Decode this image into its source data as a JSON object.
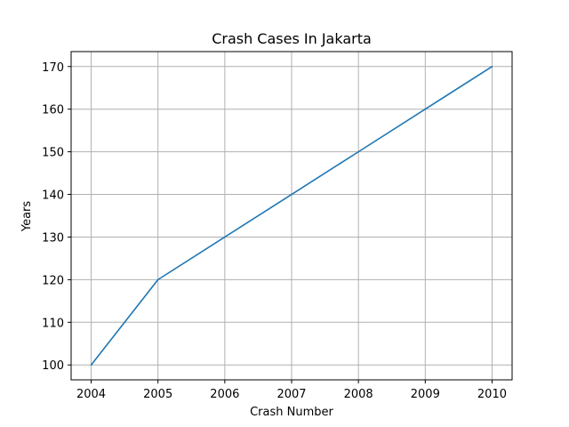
{
  "chart_data": {
    "type": "line",
    "title": "Crash Cases In Jakarta",
    "xlabel": "Crash Number",
    "ylabel": "Years",
    "x": [
      2004,
      2005,
      2006,
      2007,
      2008,
      2009,
      2010
    ],
    "series": [
      {
        "values": [
          100,
          120,
          130,
          140,
          150,
          160,
          170
        ],
        "color": "#1f77b4"
      }
    ],
    "xticks": [
      2004,
      2005,
      2006,
      2007,
      2008,
      2009,
      2010
    ],
    "yticks": [
      100,
      110,
      120,
      130,
      140,
      150,
      160,
      170
    ],
    "xlim": [
      2003.7,
      2010.3
    ],
    "ylim": [
      96.5,
      173.5
    ],
    "grid": true,
    "legend": "none"
  }
}
